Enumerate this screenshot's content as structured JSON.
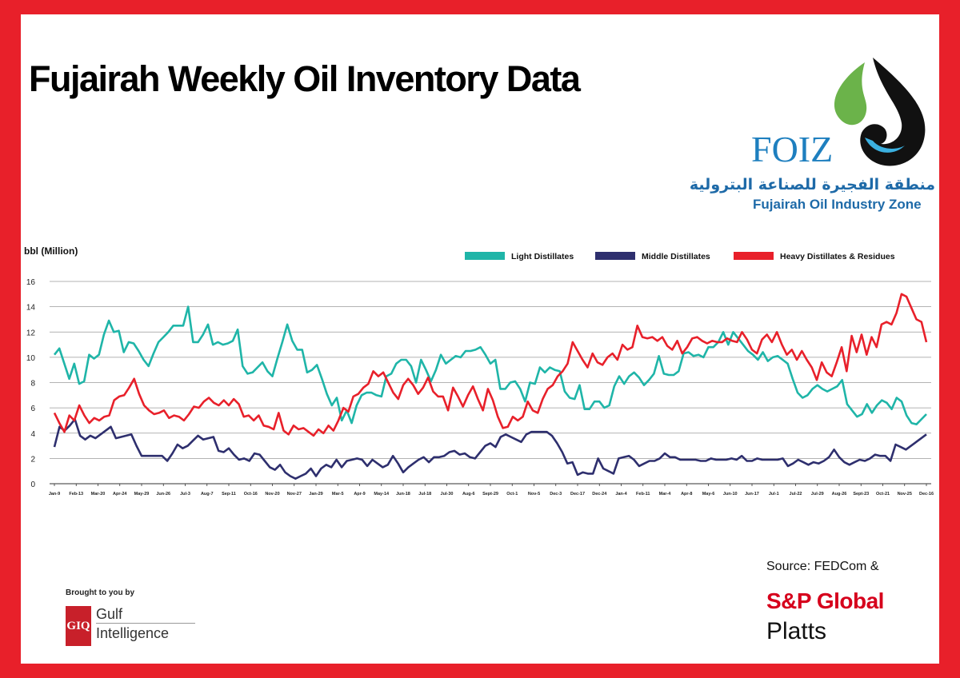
{
  "page": {
    "title": "Fujairah Weekly Oil Inventory Data",
    "logo": {
      "name": "FOIZ",
      "arabic": "منطقة الفجيرة للصناعة البترولية",
      "english": "Fujairah Oil Industry Zone"
    },
    "brought_by": "Brought to you by",
    "sponsor": {
      "badge": "GIQ",
      "line1": "Gulf",
      "line2": "Intelligence"
    },
    "source": "Source: FEDCom &",
    "source_brand_line1": "S&P Global",
    "source_brand_line2": "Platts"
  },
  "colors": {
    "light": "#1fb5a8",
    "middle": "#2e2f6e",
    "heavy": "#e8202a",
    "grid": "#9a9a9a"
  },
  "chart_data": {
    "type": "line",
    "title": "Fujairah Weekly Oil Inventory Data",
    "ylabel": "bbl (Million)",
    "xlabel": "",
    "ylim": [
      0,
      16
    ],
    "yticks": [
      0,
      2,
      4,
      6,
      8,
      10,
      12,
      14,
      16
    ],
    "grid": true,
    "legend_position": "top-right",
    "x_tick_labels": [
      "Jan-9",
      "Feb-13",
      "Mar-20",
      "Apr-24",
      "May-29",
      "Jun-26",
      "Jul-3",
      "Aug-7",
      "Sep-11",
      "Oct-16",
      "Nov-20",
      "Nov-27",
      "Jan-29",
      "Mar-5",
      "Apr-9",
      "May-14",
      "Jun-18",
      "Jul-18",
      "Jul-30",
      "Aug-6",
      "Sept-29",
      "Oct-1",
      "Nov-5",
      "Dec-3",
      "Dec-17",
      "Dec-24",
      "Jan-4",
      "Feb-11",
      "Mar-4",
      "Apr-8",
      "May-6",
      "Jun-10",
      "Jun-17",
      "Jul-1",
      "Jul-22",
      "Jul-29",
      "Aug-26",
      "Sept-23",
      "Oct-21",
      "Nov-25",
      "Dec-16"
    ],
    "series": [
      {
        "name": "Light Distillates",
        "color_key": "light",
        "values": [
          10.2,
          10.7,
          9.5,
          8.3,
          9.5,
          7.9,
          8.1,
          10.2,
          9.9,
          10.2,
          11.8,
          12.9,
          12.0,
          12.1,
          10.4,
          11.2,
          11.1,
          10.5,
          9.8,
          9.3,
          10.3,
          11.2,
          11.6,
          12.0,
          12.5,
          12.5,
          12.5,
          14.0,
          11.2,
          11.2,
          11.8,
          12.6,
          11.0,
          11.2,
          11.0,
          11.1,
          11.3,
          12.2,
          9.3,
          8.7,
          8.8,
          9.2,
          9.6,
          8.9,
          8.5,
          9.9,
          11.2,
          12.6,
          11.3,
          10.6,
          10.6,
          8.8,
          9.0,
          9.4,
          8.3,
          7.1,
          6.2,
          6.8,
          5.0,
          5.8,
          4.8,
          6.2,
          7.0,
          7.2,
          7.2,
          7.0,
          6.9,
          8.5,
          8.7,
          9.5,
          9.8,
          9.8,
          9.3,
          8.0,
          9.8,
          9.0,
          8.1,
          9.0,
          10.2,
          9.5,
          9.8,
          10.1,
          10.0,
          10.5,
          10.5,
          10.6,
          10.8,
          10.2,
          9.5,
          9.8,
          7.5,
          7.5,
          8.0,
          8.1,
          7.5,
          6.5,
          8.0,
          7.9,
          9.2,
          8.8,
          9.2,
          9.0,
          8.9,
          7.3,
          6.8,
          6.7,
          7.8,
          5.9,
          5.9,
          6.5,
          6.5,
          6.0,
          6.2,
          7.7,
          8.5,
          7.9,
          8.5,
          8.8,
          8.4,
          7.8,
          8.2,
          8.7,
          10.1,
          8.7,
          8.6,
          8.6,
          8.9,
          10.3,
          10.4,
          10.1,
          10.2,
          10.0,
          10.8,
          10.8,
          11.2,
          12.0,
          11.0,
          12.0,
          11.5,
          11.0,
          10.5,
          10.2,
          9.8,
          10.4,
          9.7,
          10.0,
          10.1,
          9.8,
          9.5,
          8.3,
          7.2,
          6.8,
          7.0,
          7.5,
          7.8,
          7.5,
          7.3,
          7.5,
          7.7,
          8.2,
          6.3,
          5.8,
          5.3,
          5.5,
          6.3,
          5.6,
          6.2,
          6.6,
          6.4,
          5.9,
          6.8,
          6.5,
          5.4,
          4.8,
          4.7,
          5.1,
          5.5
        ]
      },
      {
        "name": "Middle Distillates",
        "color_key": "middle",
        "values": [
          2.9,
          4.5,
          4.2,
          4.6,
          5.1,
          3.8,
          3.5,
          3.8,
          3.6,
          3.9,
          4.2,
          4.5,
          3.6,
          3.7,
          3.8,
          3.9,
          3.0,
          2.2,
          2.2,
          2.2,
          2.2,
          2.2,
          1.8,
          2.4,
          3.1,
          2.8,
          3.0,
          3.4,
          3.8,
          3.5,
          3.6,
          3.7,
          2.6,
          2.5,
          2.8,
          2.3,
          1.9,
          2.0,
          1.8,
          2.4,
          2.3,
          1.8,
          1.3,
          1.1,
          1.5,
          0.9,
          0.6,
          0.4,
          0.6,
          0.8,
          1.2,
          0.6,
          1.2,
          1.5,
          1.3,
          1.9,
          1.3,
          1.8,
          1.9,
          2.0,
          1.9,
          1.4,
          1.9,
          1.6,
          1.3,
          1.5,
          2.2,
          1.6,
          0.9,
          1.3,
          1.6,
          1.9,
          2.1,
          1.7,
          2.1,
          2.1,
          2.2,
          2.5,
          2.6,
          2.3,
          2.4,
          2.1,
          2.0,
          2.5,
          3.0,
          3.2,
          2.9,
          3.7,
          3.9,
          3.7,
          3.5,
          3.3,
          3.9,
          4.1,
          4.1,
          4.1,
          4.1,
          3.8,
          3.2,
          2.5,
          1.6,
          1.7,
          0.7,
          0.9,
          0.8,
          0.8,
          2.0,
          1.2,
          1.0,
          0.8,
          2.0,
          2.1,
          2.2,
          1.9,
          1.4,
          1.6,
          1.8,
          1.8,
          2.0,
          2.4,
          2.1,
          2.1,
          1.9,
          1.9,
          1.9,
          1.9,
          1.8,
          1.8,
          2.0,
          1.9,
          1.9,
          1.9,
          2.0,
          1.9,
          2.2,
          1.8,
          1.8,
          2.0,
          1.9,
          1.9,
          1.9,
          1.9,
          2.0,
          1.4,
          1.6,
          1.9,
          1.7,
          1.5,
          1.7,
          1.6,
          1.8,
          2.1,
          2.7,
          2.1,
          1.7,
          1.5,
          1.7,
          1.9,
          1.8,
          2.0,
          2.3,
          2.2,
          2.2,
          1.8,
          3.1,
          2.9,
          2.7,
          3.0,
          3.3,
          3.6,
          3.9
        ]
      },
      {
        "name": "Heavy Distillates & Residues",
        "color_key": "heavy",
        "values": [
          5.6,
          4.8,
          4.1,
          5.4,
          5.0,
          6.2,
          5.4,
          4.8,
          5.2,
          5.0,
          5.3,
          5.4,
          6.6,
          6.9,
          7.0,
          7.6,
          8.3,
          7.1,
          6.2,
          5.8,
          5.5,
          5.6,
          5.8,
          5.2,
          5.4,
          5.3,
          5.0,
          5.5,
          6.1,
          6.0,
          6.5,
          6.8,
          6.4,
          6.2,
          6.6,
          6.2,
          6.7,
          6.3,
          5.3,
          5.4,
          5.0,
          5.4,
          4.6,
          4.5,
          4.3,
          5.6,
          4.2,
          3.9,
          4.6,
          4.3,
          4.4,
          4.1,
          3.8,
          4.3,
          4.0,
          4.6,
          4.2,
          5.0,
          6.0,
          5.7,
          6.9,
          7.1,
          7.6,
          7.9,
          8.9,
          8.5,
          8.8,
          8.0,
          7.2,
          6.7,
          7.8,
          8.3,
          7.8,
          7.1,
          7.6,
          8.4,
          7.3,
          6.9,
          6.9,
          5.8,
          7.6,
          6.9,
          6.1,
          7.0,
          7.7,
          6.7,
          5.8,
          7.5,
          6.6,
          5.3,
          4.4,
          4.5,
          5.3,
          5.0,
          5.3,
          6.5,
          5.8,
          5.6,
          6.7,
          7.5,
          7.8,
          8.5,
          8.9,
          9.5,
          11.2,
          10.5,
          9.8,
          9.2,
          10.3,
          9.6,
          9.4,
          10.0,
          10.3,
          9.8,
          11.0,
          10.6,
          10.8,
          12.5,
          11.6,
          11.5,
          11.6,
          11.3,
          11.6,
          10.9,
          10.6,
          11.3,
          10.3,
          10.8,
          11.5,
          11.6,
          11.3,
          11.1,
          11.3,
          11.2,
          11.2,
          11.5,
          11.3,
          11.2,
          12.0,
          11.4,
          10.6,
          10.3,
          11.4,
          11.8,
          11.2,
          12.0,
          11.0,
          10.2,
          10.6,
          9.8,
          10.5,
          9.8,
          9.2,
          8.2,
          9.6,
          8.8,
          8.5,
          9.6,
          10.8,
          8.9,
          11.7,
          10.4,
          11.8,
          10.2,
          11.6,
          10.8,
          12.6,
          12.8,
          12.6,
          13.5,
          15.0,
          14.8,
          13.9,
          13.0,
          12.8,
          11.2
        ]
      }
    ]
  }
}
